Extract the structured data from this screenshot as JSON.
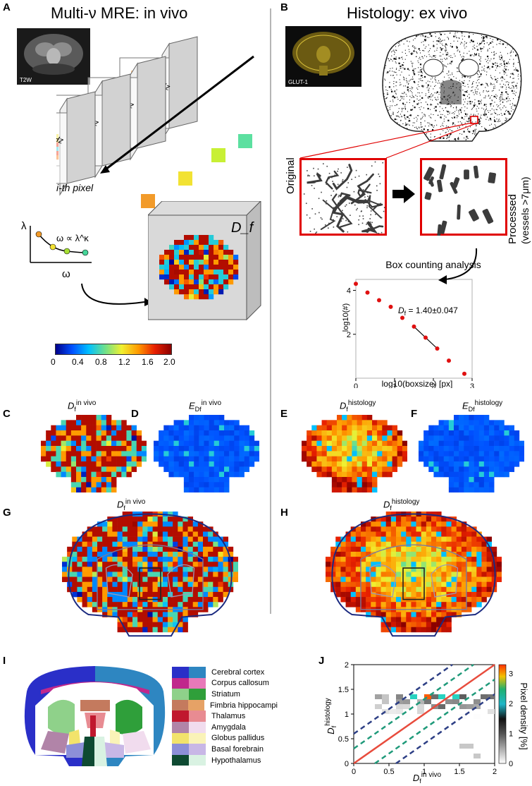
{
  "panels": {
    "A": {
      "letter": "A",
      "title": "Multi-ν MRE: in vivo",
      "t2w": "T2W",
      "freqs": [
        "λ600Hz",
        "λ700Hz",
        "λ900Hz",
        "λ1000Hz"
      ],
      "pixel_label": "i-th pixel",
      "axis_lambda": "λ",
      "axis_omega": "ω",
      "relation": "ω ∝ λ^κ",
      "df_label": "D_f",
      "colorbar": {
        "ticks": [
          "0",
          "0.4",
          "0.8",
          "1.2",
          "1.6",
          "2.0"
        ]
      }
    },
    "B": {
      "letter": "B",
      "title": "Histology: ex vivo",
      "glut": "GLUT-1",
      "original": "Original",
      "processed": "Processed",
      "processed_sub": "(vessels >7μm)",
      "box_title": "Box counting analysis"
    },
    "C": {
      "letter": "C",
      "title_main": "D",
      "title_sub": "f",
      "title_sup": "in vivo"
    },
    "D": {
      "letter": "D",
      "title_main": "E",
      "title_sub": "Df",
      "title_sup": "in vivo"
    },
    "E": {
      "letter": "E",
      "title_main": "D",
      "title_sub": "f",
      "title_sup": "histology"
    },
    "F": {
      "letter": "F",
      "title_main": "E",
      "title_sub": "Df",
      "title_sup": "histology"
    },
    "G": {
      "letter": "G",
      "title_main": "D",
      "title_sub": "f",
      "title_sup": "in vivo"
    },
    "H": {
      "letter": "H",
      "title_main": "D",
      "title_sub": "f",
      "title_sup": "histology"
    },
    "I": {
      "letter": "I",
      "legend": [
        {
          "label": "Cerebral cortex",
          "c1": "#2a2fc8",
          "c2": "#2e86c1"
        },
        {
          "label": "Corpus callosum",
          "c1": "#c0288c",
          "c2": "#e879b9"
        },
        {
          "label": "Striatum",
          "c1": "#8fd18a",
          "c2": "#2f9f3a"
        },
        {
          "label": "Fimbria hippocampi",
          "c1": "#c47a5e",
          "c2": "#e6a266"
        },
        {
          "label": "Thalamus",
          "c1": "#c0182e",
          "c2": "#e88b92"
        },
        {
          "label": "Amygdala",
          "c1": "#b184a8",
          "c2": "#f1dcee"
        },
        {
          "label": "Globus pallidus",
          "c1": "#f2e36b",
          "c2": "#faf3b8"
        },
        {
          "label": "Basal forebrain",
          "c1": "#8c8fd8",
          "c2": "#c8b7e6"
        },
        {
          "label": "Hypothalamus",
          "c1": "#0e4a32",
          "c2": "#d9f2e2"
        }
      ]
    },
    "J": {
      "letter": "J",
      "ylabel_main": "D",
      "ylabel_sub": "f",
      "ylabel_sup": "histology",
      "xlabel_main": "D",
      "xlabel_sub": "f",
      "xlabel_sup": "in vivo",
      "cb_label": "Pixel density [%]",
      "cb_ticks": [
        "0",
        "1",
        "2",
        "3"
      ]
    }
  },
  "chart_data": [
    {
      "type": "scatter",
      "title": "Box counting analysis",
      "xlabel": "log10(boxsize) [px]",
      "ylabel": "log10(#)",
      "annotation": "D_f = 1.40±0.047",
      "annotation_parts": {
        "main": "D",
        "sub": "f",
        "rest": " = 1.40±0.047"
      },
      "xlim": [
        0,
        3
      ],
      "ylim": [
        0,
        4.5
      ],
      "xticks": [
        "0",
        "1",
        "2",
        "3"
      ],
      "yticks": [
        "2",
        "4"
      ],
      "x": [
        0.0,
        0.3,
        0.6,
        0.9,
        1.2,
        1.5,
        1.8,
        2.1,
        2.4,
        2.8
      ],
      "y": [
        4.3,
        3.9,
        3.55,
        3.25,
        2.75,
        2.35,
        1.85,
        1.35,
        0.8,
        0.2
      ],
      "fit_x": [
        1.5,
        2.1
      ]
    },
    {
      "type": "heatmap",
      "xlabel": "D_f^in vivo",
      "ylabel": "D_f^histology",
      "xlim": [
        0,
        2
      ],
      "ylim": [
        0,
        2
      ],
      "xticks": [
        "0",
        "0.5",
        "1",
        "1.5",
        "2"
      ],
      "yticks": [
        "0",
        "0.5",
        "1",
        "1.5",
        "2"
      ],
      "colorbar_label": "Pixel density [%]",
      "colorbar_ticks": [
        "0",
        "1",
        "2",
        "3"
      ],
      "identity_line_color": "#e84c3d"
    }
  ]
}
